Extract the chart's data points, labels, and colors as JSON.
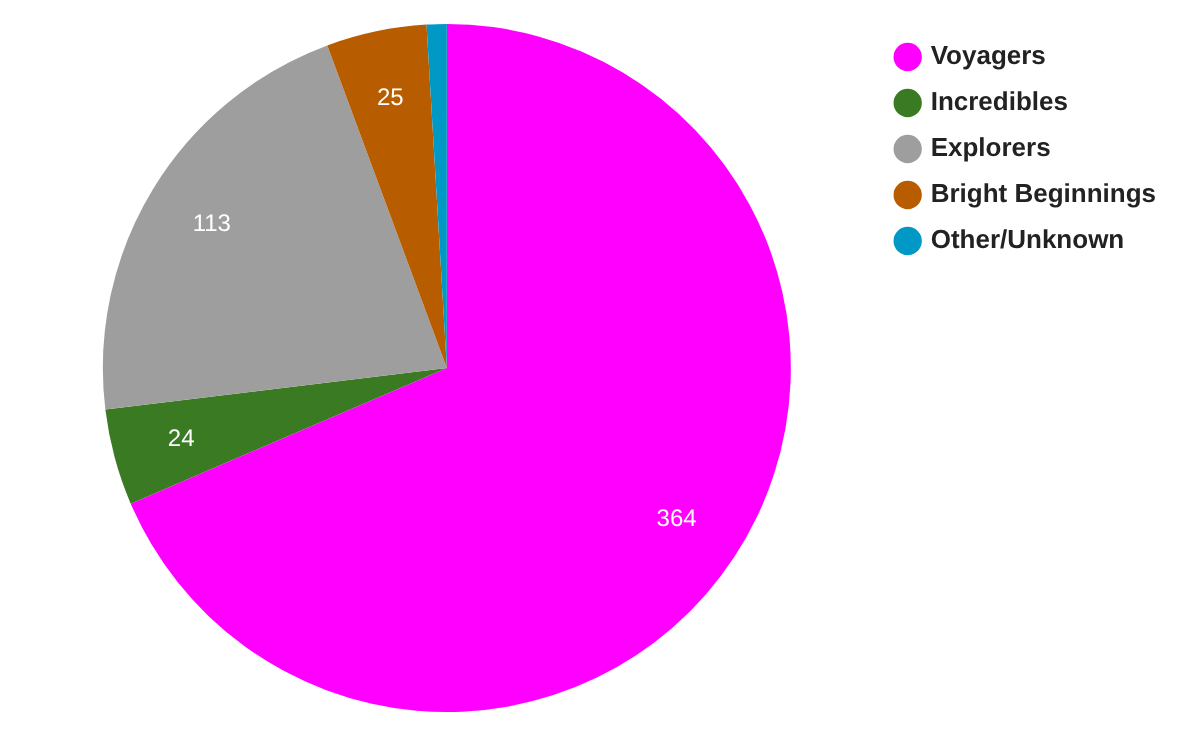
{
  "chart_data": {
    "type": "pie",
    "categories": [
      "Voyagers",
      "Incredibles",
      "Explorers",
      "Bright Beginnings",
      "Other/Unknown"
    ],
    "values": [
      364,
      24,
      113,
      25,
      5
    ],
    "value_labels": [
      "364",
      "24",
      "113",
      "25",
      null
    ],
    "colors": [
      "#ff00ff",
      "#3a7a22",
      "#9e9e9e",
      "#b85c00",
      "#0099c6"
    ],
    "legend": "right"
  }
}
